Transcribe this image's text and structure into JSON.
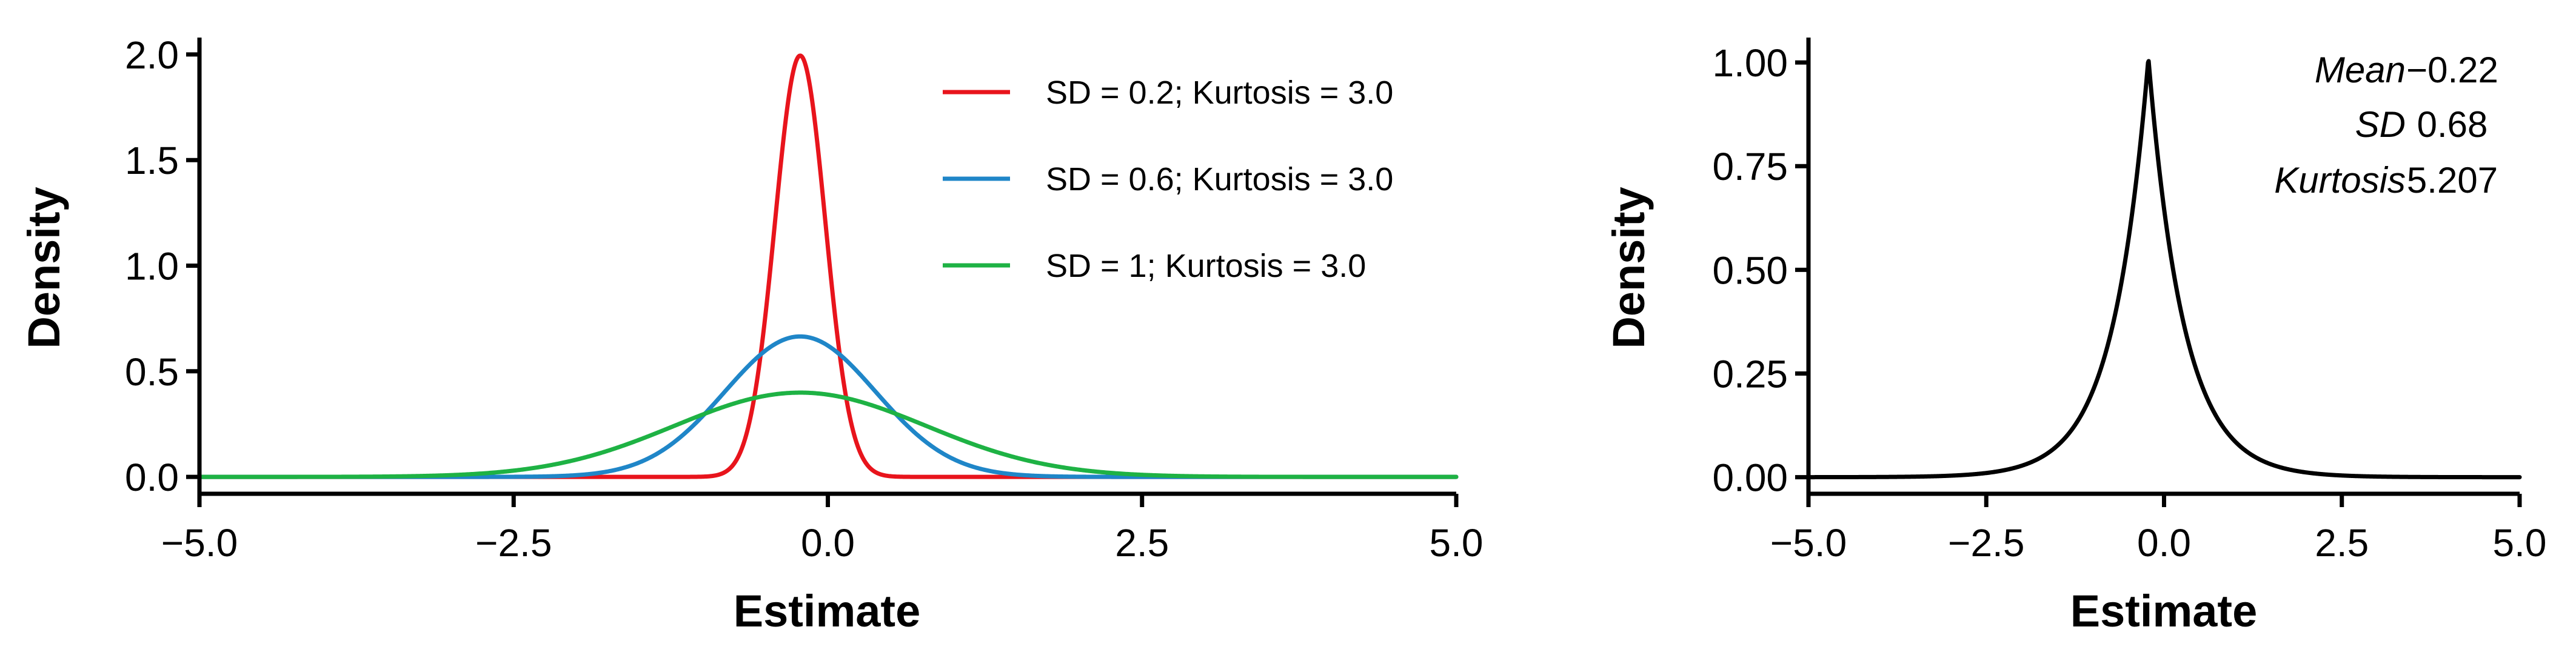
{
  "chart_data": [
    {
      "type": "line",
      "xlabel": "Estimate",
      "ylabel": "Density",
      "xlim": [
        -5,
        5
      ],
      "ylim": [
        -0.08,
        2.08
      ],
      "x_ticks": [
        -5,
        -2.5,
        0,
        2.5,
        5
      ],
      "x_tick_labels": [
        "−5.0",
        "−2.5",
        "0.0",
        "2.5",
        "5.0"
      ],
      "y_ticks": [
        0,
        0.5,
        1,
        1.5,
        2
      ],
      "y_tick_labels": [
        "0.0",
        "0.5",
        "1.0",
        "1.5",
        "2.0"
      ],
      "grid": false,
      "legend_position": "top-right",
      "series": [
        {
          "name": "SD = 0.2; Kurtosis = 3.0",
          "color": "#e8141c",
          "distribution": "normal",
          "mean": -0.22,
          "sd": 0.2
        },
        {
          "name": "SD = 0.6; Kurtosis = 3.0",
          "color": "#1f86c8",
          "distribution": "normal",
          "mean": -0.22,
          "sd": 0.6
        },
        {
          "name": "SD = 1; Kurtosis = 3.0",
          "color": "#1eb244",
          "distribution": "normal",
          "mean": -0.22,
          "sd": 1.0
        }
      ]
    },
    {
      "type": "line",
      "xlabel": "Estimate",
      "ylabel": "Density",
      "xlim": [
        -5,
        5
      ],
      "ylim": [
        -0.04,
        1.06
      ],
      "x_ticks": [
        -5,
        -2.5,
        0,
        2.5,
        5
      ],
      "x_tick_labels": [
        "−5.0",
        "−2.5",
        "0.0",
        "2.5",
        "5.0"
      ],
      "y_ticks": [
        0,
        0.25,
        0.5,
        0.75,
        1
      ],
      "y_tick_labels": [
        "0.00",
        "0.25",
        "0.50",
        "0.75",
        "1.00"
      ],
      "grid": false,
      "series": [
        {
          "color": "#000000",
          "distribution": "laplace",
          "mean": -0.22,
          "peak_density": 1.01
        }
      ],
      "stats": [
        {
          "label": "Mean",
          "value": "−0.22"
        },
        {
          "label": "SD",
          "value": "0.68"
        },
        {
          "label": "Kurtosis",
          "value": "5.207"
        }
      ]
    }
  ]
}
